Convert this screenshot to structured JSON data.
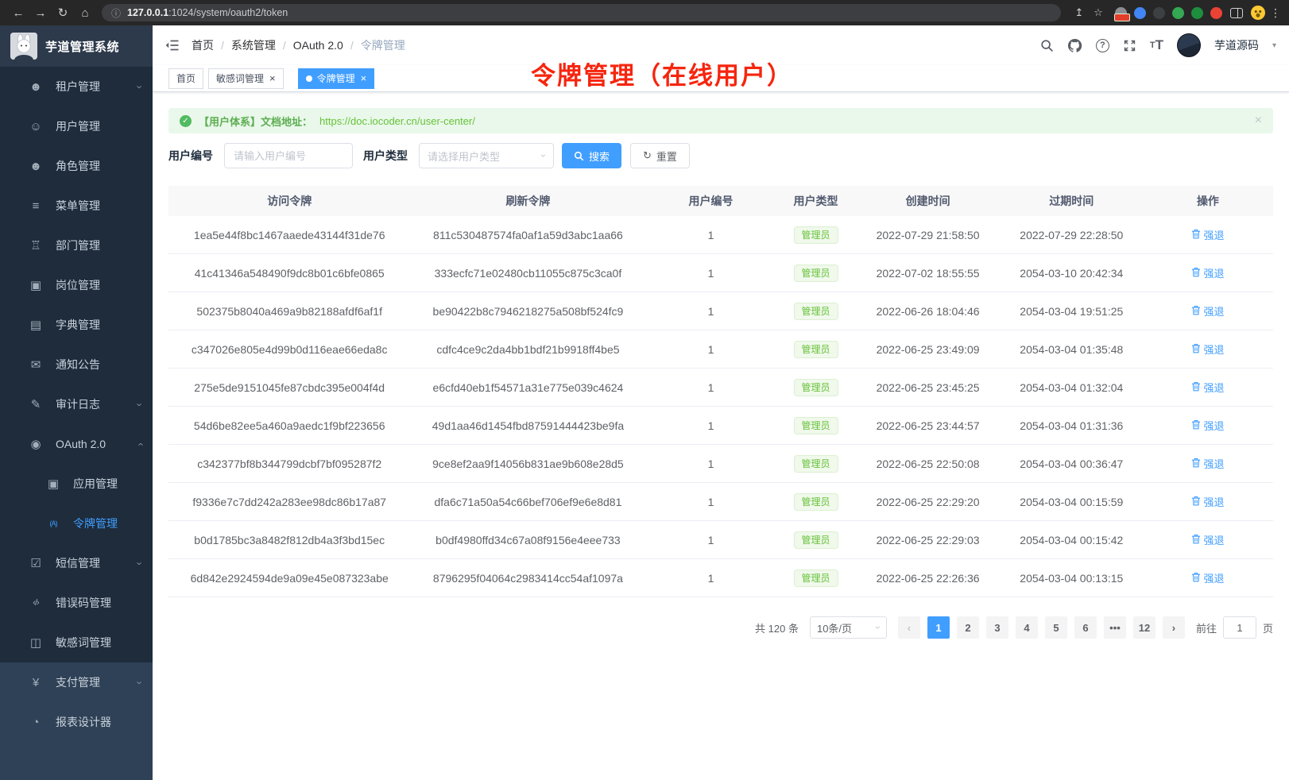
{
  "colors": {
    "accent": "#409eff",
    "success": "#67c23a",
    "annotation_red": "#f6250e",
    "sidebar_dark": "#1e2c3c",
    "sidebar_light": "#2f4156"
  },
  "browser": {
    "back": "←",
    "forward": "→",
    "reload": "↻",
    "home": "⌂",
    "info_icon": "ⓘ",
    "url_host": "127.0.0.1",
    "url_rest": ":1024/system/oauth2/token",
    "share_icon": "↥",
    "star_icon": "☆",
    "menu_icon": "⋮",
    "extensions": [
      {
        "name": "extension-gray",
        "color": "#8a8d91",
        "badge": true
      },
      {
        "name": "extension-blue",
        "color": "#4285f4",
        "badge": false
      },
      {
        "name": "extension-dark",
        "color": "#3c4043",
        "badge": false
      },
      {
        "name": "extension-green",
        "color": "#34a853",
        "badge": false
      },
      {
        "name": "extension-teal",
        "color": "#1e8e3e",
        "badge": false
      },
      {
        "name": "extension-red",
        "color": "#ea4335",
        "badge": false
      }
    ]
  },
  "sidebar": {
    "app_title": "芋道管理系统",
    "sections": [
      {
        "theme": "dark",
        "items": [
          {
            "name": "tenant",
            "icon": "☻",
            "label": "租户管理",
            "chevron": "down"
          },
          {
            "name": "user",
            "icon": "☺",
            "label": "用户管理"
          },
          {
            "name": "role",
            "icon": "☻",
            "label": "角色管理"
          },
          {
            "name": "menu",
            "icon": "≡",
            "label": "菜单管理"
          },
          {
            "name": "dept",
            "icon": "♖",
            "label": "部门管理"
          },
          {
            "name": "post",
            "icon": "▣",
            "label": "岗位管理"
          },
          {
            "name": "dict",
            "icon": "▤",
            "label": "字典管理"
          },
          {
            "name": "notice",
            "icon": "✉",
            "label": "通知公告"
          },
          {
            "name": "audit",
            "icon": "✎",
            "label": "审计日志",
            "chevron": "down"
          },
          {
            "name": "oauth",
            "icon": "◉",
            "label": "OAuth 2.0",
            "chevron": "up"
          },
          {
            "name": "oauth-app",
            "icon": "▣",
            "label": "应用管理",
            "child": true
          },
          {
            "name": "oauth-token",
            "icon": "(A)",
            "label": "令牌管理",
            "child": true,
            "active": true
          },
          {
            "name": "sms",
            "icon": "☑",
            "label": "短信管理",
            "chevron": "down"
          },
          {
            "name": "errcode",
            "icon": "‹/›",
            "label": "错误码管理"
          },
          {
            "name": "sensitive",
            "icon": "◫",
            "label": "敏感词管理"
          }
        ]
      },
      {
        "theme": "light",
        "items": [
          {
            "name": "pay",
            "icon": "¥",
            "label": "支付管理",
            "chevron": "down"
          },
          {
            "name": "report",
            "icon": "◔",
            "label": "报表设计器"
          }
        ]
      }
    ]
  },
  "navbar": {
    "breadcrumb": [
      "首页",
      "系统管理",
      "OAuth 2.0",
      "令牌管理"
    ],
    "separator": "/",
    "help_glyph": "?",
    "tt_small": "T",
    "tt_big": "T",
    "username": "芋道源码",
    "caret": "▾"
  },
  "tags": [
    {
      "label": "首页",
      "active": false,
      "closable": false
    },
    {
      "label": "敏感词管理",
      "active": false,
      "closable": true
    },
    {
      "label": "令牌管理",
      "active": true,
      "closable": true
    }
  ],
  "tag_close_glyph": "×",
  "annotation": "令牌管理（在线用户）",
  "alert": {
    "check_glyph": "✓",
    "text": "【用户体系】文档地址：",
    "link": "https://doc.iocoder.cn/user-center/",
    "close_glyph": "×"
  },
  "filters": {
    "user_id_label": "用户编号",
    "user_id_placeholder": "请输入用户编号",
    "user_type_label": "用户类型",
    "user_type_placeholder": "请选择用户类型",
    "select_chevron": "›",
    "search_label": "搜索",
    "reset_label": "重置",
    "reset_glyph": "↻"
  },
  "table": {
    "headers": [
      "访问令牌",
      "刷新令牌",
      "用户编号",
      "用户类型",
      "创建时间",
      "过期时间",
      "操作"
    ],
    "action_label": "强退",
    "rows": [
      {
        "access": "1ea5e44f8bc1467aaede43144f31de76",
        "refresh": "811c530487574fa0af1a59d3abc1aa66",
        "user_id": "1",
        "user_type": "管理员",
        "created": "2022-07-29 21:58:50",
        "expires": "2022-07-29 22:28:50"
      },
      {
        "access": "41c41346a548490f9dc8b01c6bfe0865",
        "refresh": "333ecfc71e02480cb11055c875c3ca0f",
        "user_id": "1",
        "user_type": "管理员",
        "created": "2022-07-02 18:55:55",
        "expires": "2054-03-10 20:42:34"
      },
      {
        "access": "502375b8040a469a9b82188afdf6af1f",
        "refresh": "be90422b8c7946218275a508bf524fc9",
        "user_id": "1",
        "user_type": "管理员",
        "created": "2022-06-26 18:04:46",
        "expires": "2054-03-04 19:51:25"
      },
      {
        "access": "c347026e805e4d99b0d116eae66eda8c",
        "refresh": "cdfc4ce9c2da4bb1bdf21b9918ff4be5",
        "user_id": "1",
        "user_type": "管理员",
        "created": "2022-06-25 23:49:09",
        "expires": "2054-03-04 01:35:48"
      },
      {
        "access": "275e5de9151045fe87cbdc395e004f4d",
        "refresh": "e6cfd40eb1f54571a31e775e039c4624",
        "user_id": "1",
        "user_type": "管理员",
        "created": "2022-06-25 23:45:25",
        "expires": "2054-03-04 01:32:04"
      },
      {
        "access": "54d6be82ee5a460a9aedc1f9bf223656",
        "refresh": "49d1aa46d1454fbd87591444423be9fa",
        "user_id": "1",
        "user_type": "管理员",
        "created": "2022-06-25 23:44:57",
        "expires": "2054-03-04 01:31:36"
      },
      {
        "access": "c342377bf8b344799dcbf7bf095287f2",
        "refresh": "9ce8ef2aa9f14056b831ae9b608e28d5",
        "user_id": "1",
        "user_type": "管理员",
        "created": "2022-06-25 22:50:08",
        "expires": "2054-03-04 00:36:47"
      },
      {
        "access": "f9336e7c7dd242a283ee98dc86b17a87",
        "refresh": "dfa6c71a50a54c66bef706ef9e6e8d81",
        "user_id": "1",
        "user_type": "管理员",
        "created": "2022-06-25 22:29:20",
        "expires": "2054-03-04 00:15:59"
      },
      {
        "access": "b0d1785bc3a8482f812db4a3f3bd15ec",
        "refresh": "b0df4980ffd34c67a08f9156e4eee733",
        "user_id": "1",
        "user_type": "管理员",
        "created": "2022-06-25 22:29:03",
        "expires": "2054-03-04 00:15:42"
      },
      {
        "access": "6d842e2924594de9a09e45e087323abe",
        "refresh": "8796295f04064c2983414cc54af1097a",
        "user_id": "1",
        "user_type": "管理员",
        "created": "2022-06-25 22:26:36",
        "expires": "2054-03-04 00:13:15"
      }
    ]
  },
  "pagination": {
    "total": "共 120 条",
    "page_size": "10条/页",
    "size_chevron": "›",
    "prev_glyph": "‹",
    "next_glyph": "›",
    "pages": [
      "1",
      "2",
      "3",
      "4",
      "5",
      "6",
      "•••",
      "12"
    ],
    "active_page": "1",
    "goto_label": "前往",
    "goto_value": "1",
    "goto_unit": "页"
  }
}
